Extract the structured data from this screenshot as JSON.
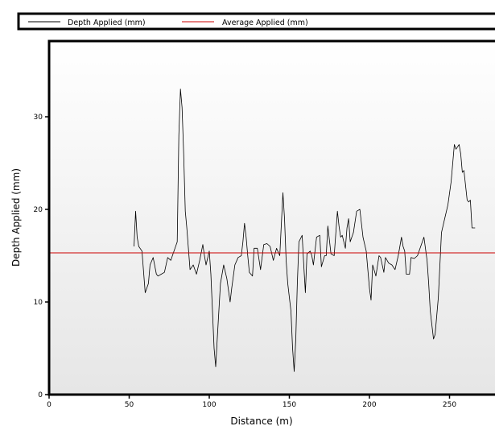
{
  "chart_data": {
    "type": "line",
    "xlabel": "Distance (m)",
    "ylabel": "Depth Applied (mm)",
    "xlim": [
      0,
      280
    ],
    "ylim": [
      0,
      38
    ],
    "x_ticks": [
      0,
      50,
      100,
      150,
      200,
      250
    ],
    "y_ticks": [
      0,
      10,
      20,
      30
    ],
    "grid": false,
    "legend_position": "top",
    "background": "gradient-white-to-lightgray",
    "series": [
      {
        "name": "Depth Applied (mm)",
        "color": "#000000",
        "points": [
          [
            53,
            16
          ],
          [
            54,
            19.8
          ],
          [
            55,
            17
          ],
          [
            56,
            16
          ],
          [
            58,
            15.5
          ],
          [
            60,
            11
          ],
          [
            62,
            12
          ],
          [
            63,
            14
          ],
          [
            65,
            14.8
          ],
          [
            67,
            13
          ],
          [
            68,
            12.8
          ],
          [
            70,
            13
          ],
          [
            72,
            13.2
          ],
          [
            74,
            14.8
          ],
          [
            76,
            14.5
          ],
          [
            78,
            15.5
          ],
          [
            80,
            16.5
          ],
          [
            81,
            28
          ],
          [
            82,
            33
          ],
          [
            83,
            31
          ],
          [
            84,
            26
          ],
          [
            85,
            19.8
          ],
          [
            86,
            18
          ],
          [
            88,
            13.5
          ],
          [
            90,
            14
          ],
          [
            92,
            13
          ],
          [
            94,
            14.5
          ],
          [
            96,
            16.2
          ],
          [
            97,
            15
          ],
          [
            98,
            14
          ],
          [
            100,
            15.5
          ],
          [
            101,
            13
          ],
          [
            103,
            5
          ],
          [
            104,
            3
          ],
          [
            105,
            6
          ],
          [
            107,
            12
          ],
          [
            109,
            14
          ],
          [
            111,
            12.5
          ],
          [
            113,
            10
          ],
          [
            114,
            11.5
          ],
          [
            116,
            14
          ],
          [
            118,
            14.8
          ],
          [
            120,
            15
          ],
          [
            121,
            16.5
          ],
          [
            122,
            18.5
          ],
          [
            123,
            17
          ],
          [
            124,
            15
          ],
          [
            125,
            13.2
          ],
          [
            127,
            12.8
          ],
          [
            128,
            15.8
          ],
          [
            130,
            15.8
          ],
          [
            132,
            13.5
          ],
          [
            134,
            16.2
          ],
          [
            136,
            16.3
          ],
          [
            138,
            16
          ],
          [
            140,
            14.5
          ],
          [
            142,
            15.8
          ],
          [
            144,
            15
          ],
          [
            146,
            21.8
          ],
          [
            147,
            19
          ],
          [
            148,
            14.5
          ],
          [
            149,
            12
          ],
          [
            151,
            9
          ],
          [
            152,
            5
          ],
          [
            153,
            2.5
          ],
          [
            154,
            6
          ],
          [
            155,
            12
          ],
          [
            156,
            16.5
          ],
          [
            158,
            17.2
          ],
          [
            159,
            14
          ],
          [
            160,
            11
          ],
          [
            161,
            15.2
          ],
          [
            163,
            15.5
          ],
          [
            164,
            15
          ],
          [
            165,
            14
          ],
          [
            167,
            17
          ],
          [
            169,
            17.2
          ],
          [
            170,
            13.8
          ],
          [
            172,
            15
          ],
          [
            173,
            15
          ],
          [
            174,
            18.2
          ],
          [
            176,
            15.2
          ],
          [
            178,
            15
          ],
          [
            180,
            19.8
          ],
          [
            181,
            18.2
          ],
          [
            182,
            17
          ],
          [
            183,
            17.2
          ],
          [
            185,
            15.8
          ],
          [
            186,
            18
          ],
          [
            187,
            19
          ],
          [
            188,
            16.5
          ],
          [
            190,
            17.5
          ],
          [
            192,
            19.8
          ],
          [
            194,
            20
          ],
          [
            196,
            17
          ],
          [
            198,
            15.5
          ],
          [
            200,
            11.5
          ],
          [
            201,
            10.2
          ],
          [
            202,
            14
          ],
          [
            204,
            12.8
          ],
          [
            206,
            15
          ],
          [
            207,
            14.8
          ],
          [
            209,
            13.2
          ],
          [
            210,
            14.8
          ],
          [
            212,
            14.2
          ],
          [
            214,
            14
          ],
          [
            216,
            13.5
          ],
          [
            218,
            15
          ],
          [
            220,
            17
          ],
          [
            221,
            16
          ],
          [
            222,
            15.5
          ],
          [
            223,
            13
          ],
          [
            225,
            13
          ],
          [
            226,
            14.8
          ],
          [
            228,
            14.7
          ],
          [
            230,
            15
          ],
          [
            232,
            16
          ],
          [
            234,
            17
          ],
          [
            236,
            14.5
          ],
          [
            237,
            12
          ],
          [
            238,
            9
          ],
          [
            240,
            6
          ],
          [
            241,
            6.5
          ],
          [
            243,
            10.5
          ],
          [
            245,
            17.5
          ],
          [
            247,
            19
          ],
          [
            249,
            20.5
          ],
          [
            251,
            23
          ],
          [
            253,
            27
          ],
          [
            254,
            26.5
          ],
          [
            256,
            27
          ],
          [
            257,
            26
          ],
          [
            258,
            24
          ],
          [
            259,
            24.2
          ],
          [
            261,
            21
          ],
          [
            262,
            20.8
          ],
          [
            263,
            21
          ],
          [
            264,
            18
          ],
          [
            266,
            18
          ]
        ]
      },
      {
        "name": "Average Applied (mm)",
        "color": "#cc0000",
        "points": [
          [
            0,
            15.3
          ],
          [
            280,
            15.3
          ]
        ]
      }
    ]
  }
}
